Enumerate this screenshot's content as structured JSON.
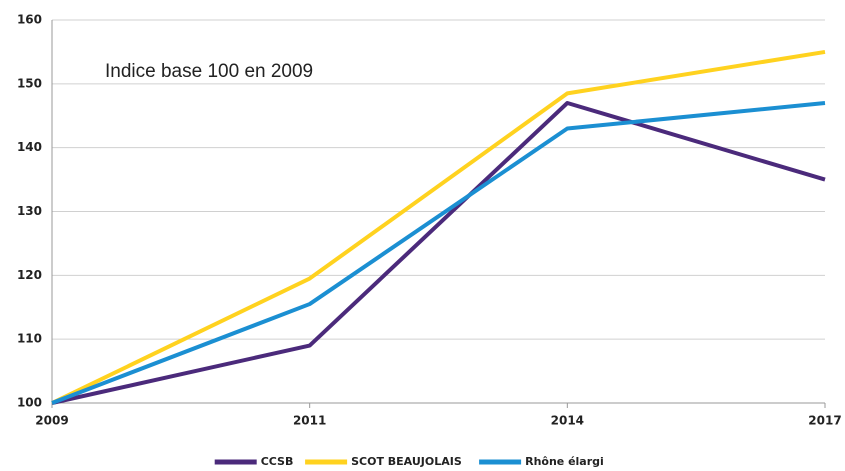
{
  "chart_data": {
    "type": "line",
    "annotation": "Indice base 100 en 2009",
    "categories": [
      "2009",
      "2011",
      "2014",
      "2017"
    ],
    "series": [
      {
        "name": "CCSB",
        "color": "#4b2a7b",
        "values": [
          100,
          109,
          147,
          135
        ]
      },
      {
        "name": "SCOT BEAUJOLAIS",
        "color": "#ffd21f",
        "values": [
          100,
          119.5,
          148.5,
          155
        ]
      },
      {
        "name": "Rhône élargi",
        "color": "#1b8fd2",
        "values": [
          100,
          115.5,
          143,
          147
        ]
      }
    ],
    "ylim": [
      100,
      160
    ],
    "yticks": [
      100,
      110,
      120,
      130,
      140,
      150,
      160
    ],
    "grid": true,
    "legend": "bottom"
  }
}
